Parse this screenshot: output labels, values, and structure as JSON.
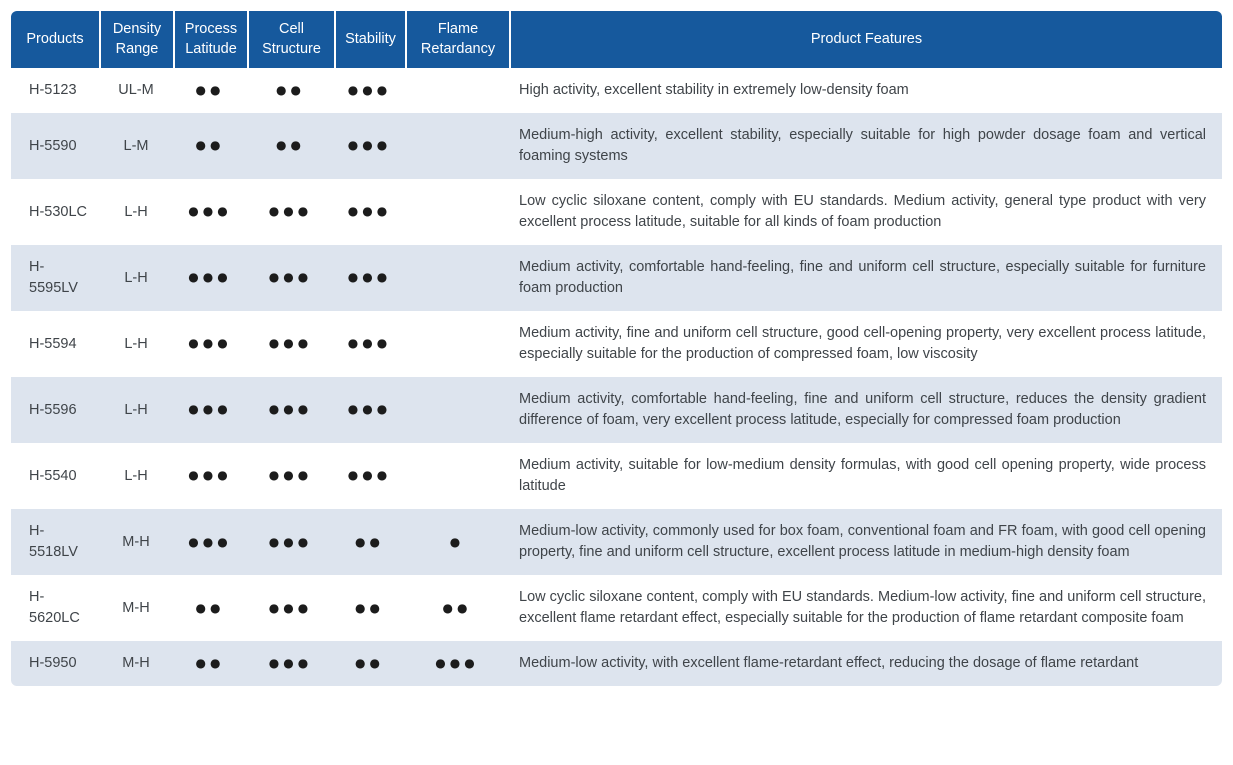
{
  "colors": {
    "header_bg": "#16599d",
    "header_text": "#ffffff",
    "row_bg": "#ffffff",
    "row_alt_bg": "#dde4ee",
    "body_text": "#3f4449",
    "dot": "#1c1c1c"
  },
  "table": {
    "dot_char": "●",
    "headers": [
      "Products",
      "Density Range",
      "Process Latitude",
      "Cell Structure",
      "Stability",
      "Flame Retardancy",
      "Product Features"
    ],
    "rows": [
      {
        "product": "H-5123",
        "density_range": "UL-M",
        "ratings": {
          "process_latitude": 2,
          "cell_structure": 2,
          "stability": 3,
          "flame_retardancy": 0
        },
        "features": "High activity, excellent stability in extremely low-density foam"
      },
      {
        "product": "H-5590",
        "density_range": "L-M",
        "ratings": {
          "process_latitude": 2,
          "cell_structure": 2,
          "stability": 3,
          "flame_retardancy": 0
        },
        "features": "Medium-high activity, excellent stability, especially suitable for high powder dosage foam and vertical foaming systems"
      },
      {
        "product": "H-530LC",
        "density_range": "L-H",
        "ratings": {
          "process_latitude": 3,
          "cell_structure": 3,
          "stability": 3,
          "flame_retardancy": 0
        },
        "features": "Low cyclic siloxane content, comply with EU standards. Medium activity, general type product with very excellent process latitude, suitable for all kinds of foam production"
      },
      {
        "product": "H-5595LV",
        "density_range": "L-H",
        "ratings": {
          "process_latitude": 3,
          "cell_structure": 3,
          "stability": 3,
          "flame_retardancy": 0
        },
        "features": "Medium activity, comfortable hand-feeling, fine and uniform cell structure, especially suitable for furniture foam production"
      },
      {
        "product": "H-5594",
        "density_range": "L-H",
        "ratings": {
          "process_latitude": 3,
          "cell_structure": 3,
          "stability": 3,
          "flame_retardancy": 0
        },
        "features": "Medium activity, fine and uniform cell structure, good cell-opening property, very excellent process latitude, especially suitable for the production of compressed foam, low viscosity"
      },
      {
        "product": "H-5596",
        "density_range": "L-H",
        "ratings": {
          "process_latitude": 3,
          "cell_structure": 3,
          "stability": 3,
          "flame_retardancy": 0
        },
        "features": "Medium activity, comfortable hand-feeling, fine and uniform cell structure, reduces the density gradient difference of foam, very excellent process latitude, especially for compressed foam production"
      },
      {
        "product": "H-5540",
        "density_range": "L-H",
        "ratings": {
          "process_latitude": 3,
          "cell_structure": 3,
          "stability": 3,
          "flame_retardancy": 0
        },
        "features": "Medium activity, suitable for low-medium density formulas, with good cell opening property, wide process latitude"
      },
      {
        "product": "H-5518LV",
        "density_range": "M-H",
        "ratings": {
          "process_latitude": 3,
          "cell_structure": 3,
          "stability": 2,
          "flame_retardancy": 1
        },
        "features": "Medium-low activity, commonly used for box foam, conventional foam and FR foam, with good cell opening property, fine and uniform cell structure, excellent process latitude in medium-high density foam"
      },
      {
        "product": "H-5620LC",
        "density_range": "M-H",
        "ratings": {
          "process_latitude": 2,
          "cell_structure": 3,
          "stability": 2,
          "flame_retardancy": 2
        },
        "features": "Low cyclic siloxane content, comply with EU standards. Medium-low activity, fine and uniform cell structure, excellent flame retardant effect, especially suitable for the production of flame retardant composite foam"
      },
      {
        "product": "H-5950",
        "density_range": "M-H",
        "ratings": {
          "process_latitude": 2,
          "cell_structure": 3,
          "stability": 2,
          "flame_retardancy": 3
        },
        "features": "Medium-low activity, with excellent flame-retardant effect, reducing the dosage of flame retardant"
      }
    ]
  }
}
